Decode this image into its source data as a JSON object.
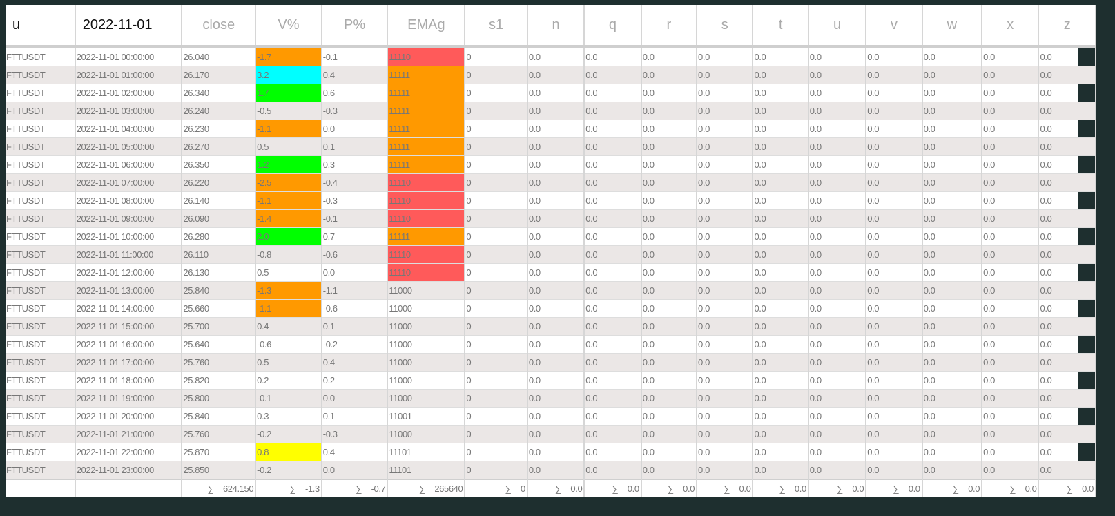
{
  "header": {
    "filters": [
      "u",
      "2022-11-01",
      "close",
      "V%",
      "P%",
      "EMAg",
      "s1",
      "n",
      "q",
      "r",
      "s",
      "t",
      "u",
      "v",
      "w",
      "x",
      "z"
    ]
  },
  "colors": {
    "orange": "#ff9900",
    "cyan": "#00ffff",
    "green": "#00ff00",
    "red": "#ff5a5a",
    "yellow": "#ffff00"
  },
  "rows": [
    {
      "sym": "FTTUSDT",
      "time": "2022-11-01 00:00:00",
      "close": "26.040",
      "v": "-1.7",
      "vc": "orange",
      "p": "-0.1",
      "ema": "11110",
      "ec": "red"
    },
    {
      "sym": "FTTUSDT",
      "time": "2022-11-01 01:00:00",
      "close": "26.170",
      "v": "3.2",
      "vc": "cyan",
      "p": "0.4",
      "ema": "11111",
      "ec": "orange"
    },
    {
      "sym": "FTTUSDT",
      "time": "2022-11-01 02:00:00",
      "close": "26.340",
      "v": "1.7",
      "vc": "green",
      "p": "0.6",
      "ema": "11111",
      "ec": "orange"
    },
    {
      "sym": "FTTUSDT",
      "time": "2022-11-01 03:00:00",
      "close": "26.240",
      "v": "-0.5",
      "vc": "",
      "p": "-0.3",
      "ema": "11111",
      "ec": "orange"
    },
    {
      "sym": "FTTUSDT",
      "time": "2022-11-01 04:00:00",
      "close": "26.230",
      "v": "-1.1",
      "vc": "orange",
      "p": "0.0",
      "ema": "11111",
      "ec": "orange"
    },
    {
      "sym": "FTTUSDT",
      "time": "2022-11-01 05:00:00",
      "close": "26.270",
      "v": "0.5",
      "vc": "",
      "p": "0.1",
      "ema": "11111",
      "ec": "orange"
    },
    {
      "sym": "FTTUSDT",
      "time": "2022-11-01 06:00:00",
      "close": "26.350",
      "v": "1.2",
      "vc": "green",
      "p": "0.3",
      "ema": "11111",
      "ec": "orange"
    },
    {
      "sym": "FTTUSDT",
      "time": "2022-11-01 07:00:00",
      "close": "26.220",
      "v": "-2.5",
      "vc": "orange",
      "p": "-0.4",
      "ema": "11110",
      "ec": "red"
    },
    {
      "sym": "FTTUSDT",
      "time": "2022-11-01 08:00:00",
      "close": "26.140",
      "v": "-1.1",
      "vc": "orange",
      "p": "-0.3",
      "ema": "11110",
      "ec": "red"
    },
    {
      "sym": "FTTUSDT",
      "time": "2022-11-01 09:00:00",
      "close": "26.090",
      "v": "-1.4",
      "vc": "orange",
      "p": "-0.1",
      "ema": "11110",
      "ec": "red"
    },
    {
      "sym": "FTTUSDT",
      "time": "2022-11-01 10:00:00",
      "close": "26.280",
      "v": "2.0",
      "vc": "green",
      "p": "0.7",
      "ema": "11111",
      "ec": "orange"
    },
    {
      "sym": "FTTUSDT",
      "time": "2022-11-01 11:00:00",
      "close": "26.110",
      "v": "-0.8",
      "vc": "",
      "p": "-0.6",
      "ema": "11110",
      "ec": "red"
    },
    {
      "sym": "FTTUSDT",
      "time": "2022-11-01 12:00:00",
      "close": "26.130",
      "v": "0.5",
      "vc": "",
      "p": "0.0",
      "ema": "11110",
      "ec": "red"
    },
    {
      "sym": "FTTUSDT",
      "time": "2022-11-01 13:00:00",
      "close": "25.840",
      "v": "-1.3",
      "vc": "orange",
      "p": "-1.1",
      "ema": "11000",
      "ec": ""
    },
    {
      "sym": "FTTUSDT",
      "time": "2022-11-01 14:00:00",
      "close": "25.660",
      "v": "-1.1",
      "vc": "orange",
      "p": "-0.6",
      "ema": "11000",
      "ec": ""
    },
    {
      "sym": "FTTUSDT",
      "time": "2022-11-01 15:00:00",
      "close": "25.700",
      "v": "0.4",
      "vc": "",
      "p": "0.1",
      "ema": "11000",
      "ec": ""
    },
    {
      "sym": "FTTUSDT",
      "time": "2022-11-01 16:00:00",
      "close": "25.640",
      "v": "-0.6",
      "vc": "",
      "p": "-0.2",
      "ema": "11000",
      "ec": ""
    },
    {
      "sym": "FTTUSDT",
      "time": "2022-11-01 17:00:00",
      "close": "25.760",
      "v": "0.5",
      "vc": "",
      "p": "0.4",
      "ema": "11000",
      "ec": ""
    },
    {
      "sym": "FTTUSDT",
      "time": "2022-11-01 18:00:00",
      "close": "25.820",
      "v": "0.2",
      "vc": "",
      "p": "0.2",
      "ema": "11000",
      "ec": ""
    },
    {
      "sym": "FTTUSDT",
      "time": "2022-11-01 19:00:00",
      "close": "25.800",
      "v": "-0.1",
      "vc": "",
      "p": "0.0",
      "ema": "11000",
      "ec": ""
    },
    {
      "sym": "FTTUSDT",
      "time": "2022-11-01 20:00:00",
      "close": "25.840",
      "v": "0.3",
      "vc": "",
      "p": "0.1",
      "ema": "11001",
      "ec": ""
    },
    {
      "sym": "FTTUSDT",
      "time": "2022-11-01 21:00:00",
      "close": "25.760",
      "v": "-0.2",
      "vc": "",
      "p": "-0.3",
      "ema": "11000",
      "ec": ""
    },
    {
      "sym": "FTTUSDT",
      "time": "2022-11-01 22:00:00",
      "close": "25.870",
      "v": "0.8",
      "vc": "yellow",
      "p": "0.4",
      "ema": "11101",
      "ec": ""
    },
    {
      "sym": "FTTUSDT",
      "time": "2022-11-01 23:00:00",
      "close": "25.850",
      "v": "-0.2",
      "vc": "",
      "p": "0.0",
      "ema": "11101",
      "ec": ""
    }
  ],
  "s1_value": "0",
  "zero_value": "0.0",
  "footer": [
    "",
    "",
    "∑ = 624.150",
    "∑ = -1.3",
    "∑ = -0.7",
    "∑ = 265640",
    "∑ = 0",
    "∑ = 0.0",
    "∑ = 0.0",
    "∑ = 0.0",
    "∑ = 0.0",
    "∑ = 0.0",
    "∑ = 0.0",
    "∑ = 0.0",
    "∑ = 0.0",
    "∑ = 0.0",
    "∑ = 0.0"
  ]
}
